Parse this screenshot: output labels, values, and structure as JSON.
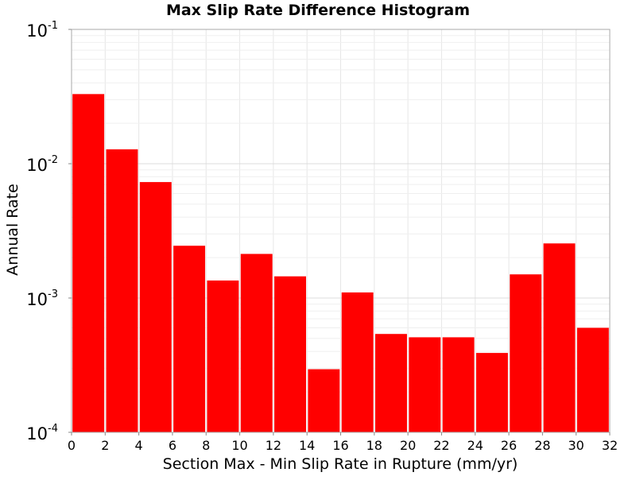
{
  "chart_data": {
    "type": "bar",
    "title": "Max Slip Rate Difference Histogram",
    "xlabel": "Section Max - Min Slip Rate in Rupture (mm/yr)",
    "ylabel": "Annual Rate",
    "xlim": [
      0,
      32
    ],
    "ylim": [
      0.0001,
      0.1
    ],
    "yscale": "log",
    "grid": true,
    "bar_color": "#ff0000",
    "x_ticks": [
      "0",
      "2",
      "4",
      "6",
      "8",
      "10",
      "12",
      "14",
      "16",
      "18",
      "20",
      "22",
      "24",
      "26",
      "28",
      "30",
      "32"
    ],
    "y_ticks": [
      {
        "value": 0.0001,
        "base": "10",
        "exp": "-4"
      },
      {
        "value": 0.001,
        "base": "10",
        "exp": "-3"
      },
      {
        "value": 0.01,
        "base": "10",
        "exp": "-2"
      },
      {
        "value": 0.1,
        "base": "10",
        "exp": "-1"
      }
    ],
    "bins": [
      {
        "x_start": 0,
        "x_end": 2,
        "value": 0.033
      },
      {
        "x_start": 2,
        "x_end": 4,
        "value": 0.0128
      },
      {
        "x_start": 4,
        "x_end": 6,
        "value": 0.0073
      },
      {
        "x_start": 6,
        "x_end": 8,
        "value": 0.00245
      },
      {
        "x_start": 8,
        "x_end": 10,
        "value": 0.00135
      },
      {
        "x_start": 10,
        "x_end": 12,
        "value": 0.00213
      },
      {
        "x_start": 12,
        "x_end": 14,
        "value": 0.00145
      },
      {
        "x_start": 14,
        "x_end": 16,
        "value": 0.000295
      },
      {
        "x_start": 16,
        "x_end": 18,
        "value": 0.0011
      },
      {
        "x_start": 18,
        "x_end": 20,
        "value": 0.00054
      },
      {
        "x_start": 20,
        "x_end": 22,
        "value": 0.00051
      },
      {
        "x_start": 22,
        "x_end": 24,
        "value": 0.00051
      },
      {
        "x_start": 24,
        "x_end": 26,
        "value": 0.00039
      },
      {
        "x_start": 26,
        "x_end": 28,
        "value": 0.0015
      },
      {
        "x_start": 28,
        "x_end": 30,
        "value": 0.00255
      },
      {
        "x_start": 30,
        "x_end": 32,
        "value": 0.0006
      }
    ]
  }
}
